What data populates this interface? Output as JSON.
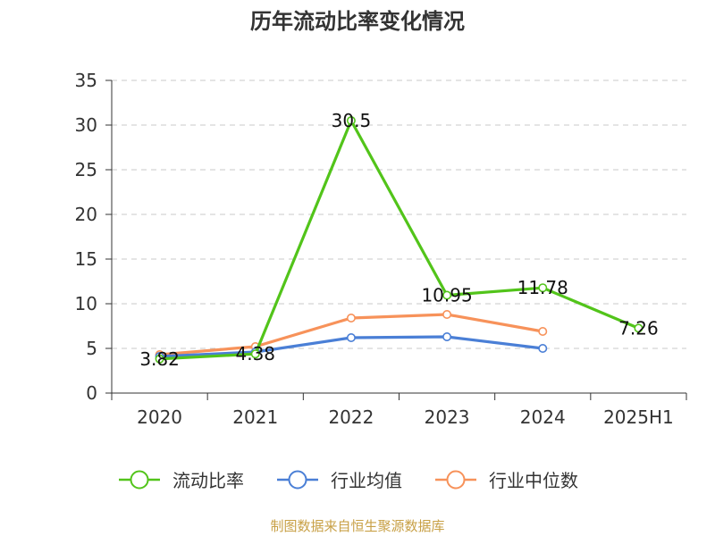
{
  "chart_data": {
    "type": "line",
    "title": "历年流动比率变化情况",
    "categories": [
      "2020",
      "2021",
      "2022",
      "2023",
      "2024",
      "2025H1"
    ],
    "ylim": [
      0,
      35
    ],
    "yticks": [
      0,
      5,
      10,
      15,
      20,
      25,
      30,
      35
    ],
    "grid": true,
    "legend_position": "bottom",
    "series": [
      {
        "name": "流动比率",
        "color": "#52c41a",
        "values": [
          3.82,
          4.38,
          30.5,
          10.95,
          11.78,
          7.26
        ],
        "labels": [
          "3.82",
          "4.38",
          "30.5",
          "10.95",
          "11.78",
          "7.26"
        ]
      },
      {
        "name": "行业均值",
        "color": "#4a7fd6",
        "values": [
          4.1,
          4.6,
          6.2,
          6.3,
          5.0,
          null
        ]
      },
      {
        "name": "行业中位数",
        "color": "#f7925a",
        "values": [
          4.3,
          5.2,
          8.4,
          8.8,
          6.9,
          null
        ]
      }
    ],
    "source": "制图数据来自恒生聚源数据库",
    "source_color": "#c8a046"
  }
}
